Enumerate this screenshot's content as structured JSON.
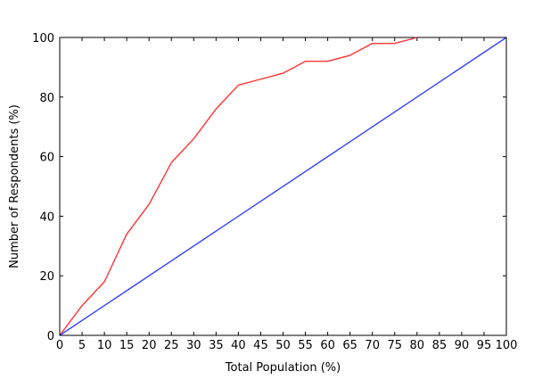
{
  "chart_data": {
    "type": "line",
    "title": "",
    "xlabel": "Total Population (%)",
    "ylabel": "Number of Respondents (%)",
    "xlim": [
      0,
      100
    ],
    "ylim": [
      0,
      100
    ],
    "x_ticks": [
      0,
      5,
      10,
      15,
      20,
      25,
      30,
      35,
      40,
      45,
      50,
      55,
      60,
      65,
      70,
      75,
      80,
      85,
      90,
      95,
      100
    ],
    "y_ticks": [
      0,
      20,
      40,
      60,
      80,
      100
    ],
    "grid": false,
    "legend": "none",
    "series": [
      {
        "color": "#ff3333",
        "x": [
          0,
          5,
          10,
          15,
          20,
          25,
          30,
          35,
          40,
          45,
          50,
          55,
          60,
          65,
          70,
          75,
          80
        ],
        "y": [
          0,
          10,
          18,
          34,
          44,
          58,
          66,
          76,
          84,
          86,
          88,
          92,
          92,
          94,
          98,
          98,
          100
        ]
      },
      {
        "color": "#3344ff",
        "x": [
          0,
          100
        ],
        "y": [
          0,
          100
        ]
      }
    ]
  }
}
